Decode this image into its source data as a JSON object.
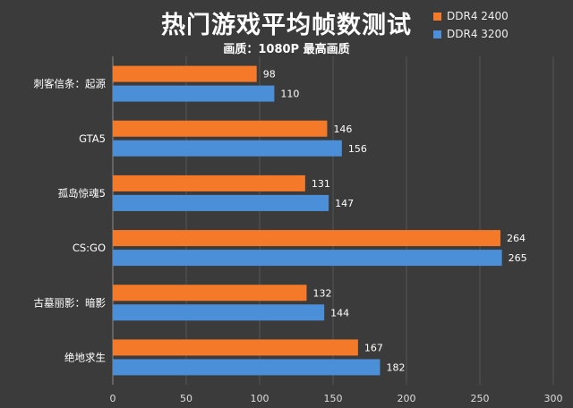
{
  "chart_data": {
    "type": "bar",
    "orientation": "horizontal",
    "title": "热门游戏平均帧数测试",
    "subtitle": "画质：1080P 最高画质",
    "categories": [
      "刺客信条：起源",
      "GTA5",
      "孤岛惊魂5",
      "CS:GO",
      "古墓丽影：暗影",
      "绝地求生"
    ],
    "series": [
      {
        "name": "DDR4 2400",
        "color": "#f47a2a",
        "values": [
          98,
          146,
          131,
          264,
          132,
          167
        ]
      },
      {
        "name": "DDR4 3200",
        "color": "#4a8fd8",
        "values": [
          110,
          156,
          147,
          265,
          144,
          182
        ]
      }
    ],
    "xlim": [
      0,
      300
    ],
    "xticks": [
      0,
      50,
      100,
      150,
      200,
      250,
      300
    ],
    "grid": "vertical",
    "legend": "top-right",
    "data_labels": true
  }
}
